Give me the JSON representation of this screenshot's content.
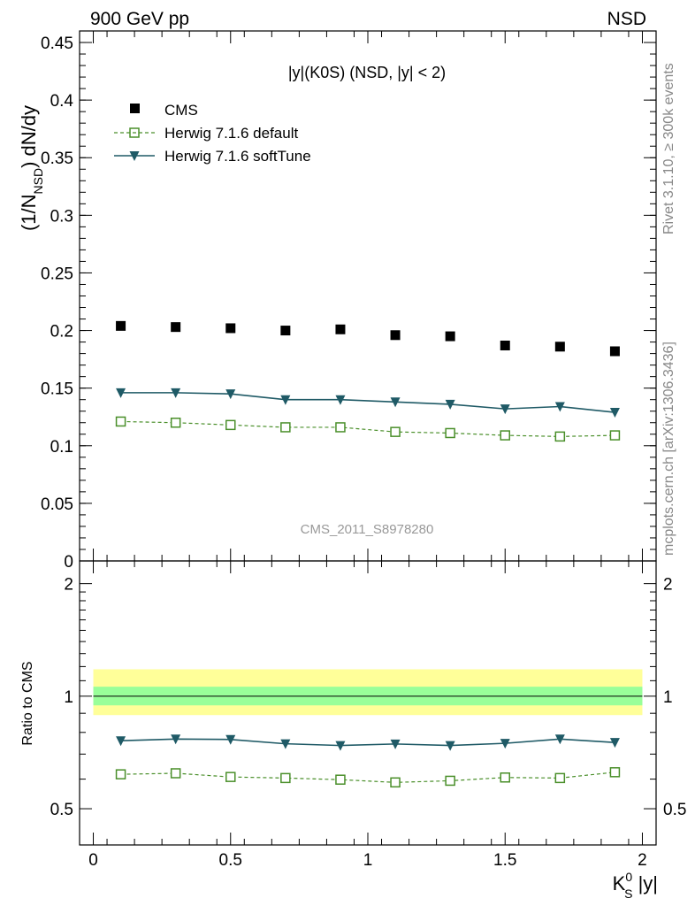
{
  "header": {
    "left": "900 GeV pp",
    "right": "NSD"
  },
  "side_labels": {
    "upper": "Rivet 3.1.10, ≥ 300k events",
    "lower": "mcplots.cern.ch [arXiv:1306.3436]"
  },
  "watermark": "CMS_2011_S8978280",
  "colors": {
    "data": "#000000",
    "default": "#4a8f2a",
    "softtune": "#1f5a66",
    "band_outer": "#ffff99",
    "band_inner": "#99ff99"
  },
  "chart_data": [
    {
      "type": "scatter",
      "panel": "main",
      "title": "|y|(K0S) (NSD, |y| < 2)",
      "ylabel": "(1/N_NSD) dN/dy",
      "ylim": [
        0,
        0.46
      ],
      "yticks": [
        "0",
        "0.05",
        "0.1",
        "0.15",
        "0.2",
        "0.25",
        "0.3",
        "0.35",
        "0.4",
        "0.45"
      ],
      "legend_position": "top-left",
      "x": [
        0.1,
        0.3,
        0.5,
        0.7,
        0.9,
        1.1,
        1.3,
        1.5,
        1.7,
        1.9
      ],
      "series": [
        {
          "name": "CMS",
          "style": "markers",
          "values": [
            0.204,
            0.203,
            0.202,
            0.2,
            0.201,
            0.196,
            0.195,
            0.187,
            0.186,
            0.182
          ]
        },
        {
          "name": "Herwig 7.1.6 default",
          "style": "dashed-open-square",
          "values": [
            0.121,
            0.12,
            0.118,
            0.116,
            0.116,
            0.112,
            0.111,
            0.109,
            0.108,
            0.109
          ]
        },
        {
          "name": "Herwig 7.1.6 softTune",
          "style": "solid-triangle-down",
          "values": [
            0.146,
            0.146,
            0.145,
            0.14,
            0.14,
            0.138,
            0.136,
            0.132,
            0.134,
            0.129
          ]
        }
      ]
    },
    {
      "type": "line",
      "panel": "ratio",
      "ylabel": "Ratio to CMS",
      "xlabel": "K_S^0 |y|",
      "xlim": [
        -0.05,
        2.05
      ],
      "xticks": [
        "0",
        "0.5",
        "1",
        "1.5",
        "2"
      ],
      "ylim": [
        0.4,
        2.3
      ],
      "yscale": "log",
      "yticks": [
        "0.5",
        "1",
        "2"
      ],
      "band": {
        "outer": [
          0.89,
          1.18
        ],
        "inner": [
          0.945,
          1.06
        ]
      },
      "x": [
        0.1,
        0.3,
        0.5,
        0.7,
        0.9,
        1.1,
        1.3,
        1.5,
        1.7,
        1.9
      ],
      "series": [
        {
          "name": "Herwig 7.1.6 softTune",
          "values": [
            0.76,
            0.768,
            0.766,
            0.746,
            0.738,
            0.745,
            0.738,
            0.748,
            0.768,
            0.752
          ]
        },
        {
          "name": "Herwig 7.1.6 default",
          "values": [
            0.618,
            0.622,
            0.608,
            0.604,
            0.598,
            0.588,
            0.594,
            0.606,
            0.604,
            0.626
          ]
        }
      ]
    }
  ]
}
